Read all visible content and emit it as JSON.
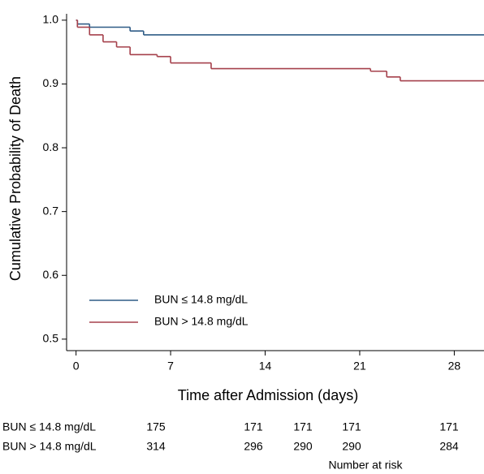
{
  "chart_data": {
    "type": "step",
    "x_label": "Time after Admission (days)",
    "y_label": "Cumulative Probability of Death",
    "xlim": [
      -0.7,
      30.2
    ],
    "xticks": [
      0,
      7,
      14,
      21,
      28
    ],
    "ylim": [
      0.482,
      1.01
    ],
    "yticks": [
      0.5,
      0.6,
      0.7,
      0.8,
      0.9,
      {
        "value": 1,
        "label": "1.0"
      }
    ],
    "grid": false,
    "legend": "lower left",
    "series": [
      {
        "name": "BUN ≤ 14.8 mg/dL",
        "color": "#2f5b86",
        "x": [
          0,
          0.1,
          1,
          4,
          5
        ],
        "values": [
          1.0,
          0.994,
          0.989,
          0.983,
          0.977
        ]
      },
      {
        "name": "BUN > 14.8 mg/dL",
        "color": "#a5404b",
        "x": [
          0,
          0.1,
          1,
          2,
          3,
          4,
          6,
          7,
          10,
          21.8,
          23,
          24
        ],
        "values": [
          1.0,
          0.989,
          0.977,
          0.966,
          0.958,
          0.946,
          0.943,
          0.933,
          0.924,
          0.92,
          0.911,
          0.905
        ]
      }
    ]
  },
  "risk_table": {
    "title": "Number at risk",
    "rows": [
      {
        "label": "BUN ≤ 14.8 mg/dL",
        "values": [
          175,
          171,
          171,
          171,
          171
        ]
      },
      {
        "label": "BUN > 14.8 mg/dL",
        "values": [
          314,
          296,
          290,
          290,
          284
        ]
      }
    ]
  }
}
